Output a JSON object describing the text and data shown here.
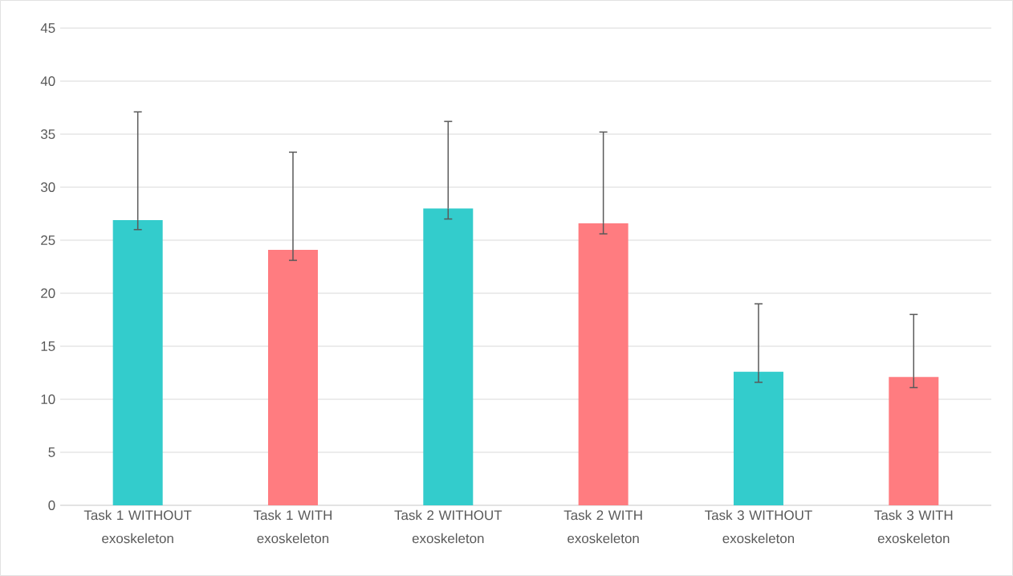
{
  "chart_data": {
    "type": "bar",
    "categories": [
      "Task 1 WITHOUT exoskeleton",
      "Task 1 WITH exoskeleton",
      "Task 2 WITHOUT exoskeleton",
      "Task 2 WITH exoskeleton",
      "Task 3 WITHOUT exoskeleton",
      "Task 3 WITH exoskeleton"
    ],
    "values": [
      26.9,
      24.1,
      28.0,
      26.6,
      12.6,
      12.1
    ],
    "errors": [
      [
        26.0,
        37.1
      ],
      [
        23.1,
        33.3
      ],
      [
        27.0,
        36.2
      ],
      [
        25.6,
        35.2
      ],
      [
        11.6,
        19.0
      ],
      [
        11.1,
        18.0
      ]
    ],
    "colors": [
      "#33cccc",
      "#ff7c80",
      "#33cccc",
      "#ff7c80",
      "#33cccc",
      "#ff7c80"
    ],
    "ylim": [
      0,
      45
    ],
    "yticks": [
      0,
      5,
      10,
      15,
      20,
      25,
      30,
      35,
      40,
      45
    ],
    "grid": true
  }
}
